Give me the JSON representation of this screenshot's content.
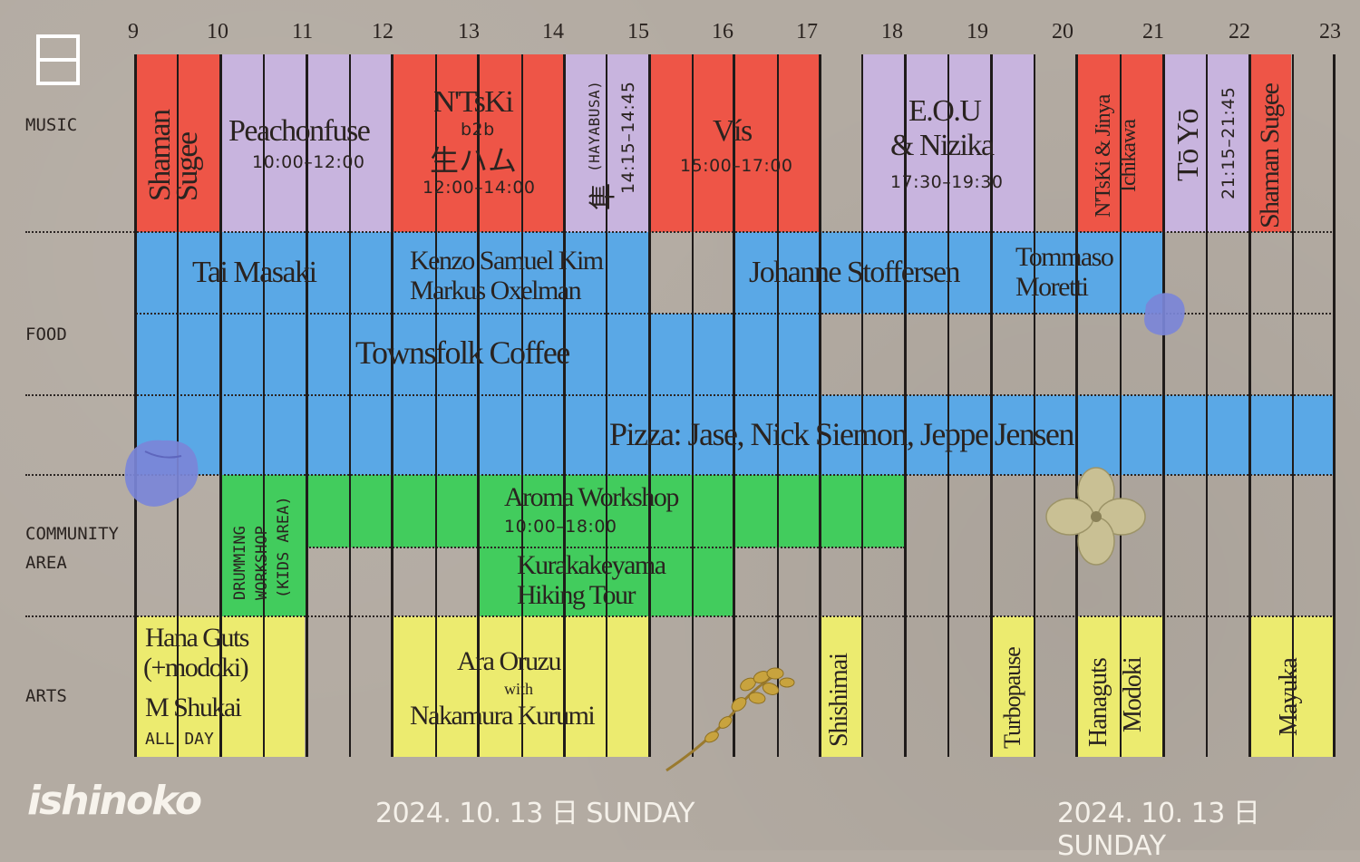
{
  "header": {
    "day_glyph": "日",
    "hours": [
      "9",
      "10",
      "11",
      "12",
      "13",
      "14",
      "15",
      "16",
      "17",
      "18",
      "19",
      "20",
      "21",
      "22",
      "23"
    ]
  },
  "rows": {
    "music": "MUSIC",
    "food": "FOOD",
    "community": [
      "COMMUNITY",
      "AREA"
    ],
    "arts": "ARTS"
  },
  "music": {
    "shaman1": [
      "Shaman",
      "Sugee"
    ],
    "peach": {
      "name": "Peachonfuse",
      "time": "10:00–12:00"
    },
    "ntski": {
      "name": "N'TsKi",
      "b2b": "b2b",
      "name2": "生ハム",
      "time": "12:00–14:00"
    },
    "hayabusa": {
      "name": "隼",
      "sub": "(HAYABUSA)",
      "time": "14:15–14:45"
    },
    "vis": {
      "name": "Vís",
      "time": "15:00–17:00"
    },
    "eou": {
      "name": "E.O.U",
      "name2": "& Nizika",
      "time": "17:30–19:30"
    },
    "ntski2": [
      "N'TsKi & Jinya",
      "Ichikawa"
    ],
    "toyo": {
      "name": "Tō Yō",
      "time": "21:15–21:45"
    },
    "shaman2": "Shaman Sugee"
  },
  "food": {
    "tai": "Tai Masaki",
    "kenzo": [
      "Kenzo Samuel Kim",
      "Markus Oxelman"
    ],
    "johanne": "Johanne Stoffersen",
    "tommaso": [
      "Tommaso",
      "Moretti"
    ],
    "townsfolk": "Townsfolk Coffee",
    "pizza": "Pizza: Jase, Nick Siemon, Jeppe Jensen"
  },
  "community": {
    "drumming": [
      "DRUMMING",
      "WORKSHOP",
      "(KIDS AREA)"
    ],
    "aroma": {
      "name": "Aroma Workshop",
      "time": "10:00–18:00"
    },
    "hiking": [
      "Kurakakeyama",
      "Hiking Tour"
    ]
  },
  "arts": {
    "hana": [
      "Hana Guts",
      "(+modoki)",
      "M Shukai",
      "ALL DAY"
    ],
    "ara": {
      "name": "Ara Oruzu",
      "with": "with",
      "name2": "Nakamura Kurumi"
    },
    "shishimai": "Shishimai",
    "turbopause": "Turbopause",
    "hanaguts": [
      "Hanaguts",
      "Modoki"
    ],
    "mayuka": "Mayuka"
  },
  "footer": {
    "logo": "ishinoko",
    "date_left": "2024. 10. 13 日 SUNDAY",
    "date_right": "2024. 10. 13 日 SUNDAY"
  }
}
